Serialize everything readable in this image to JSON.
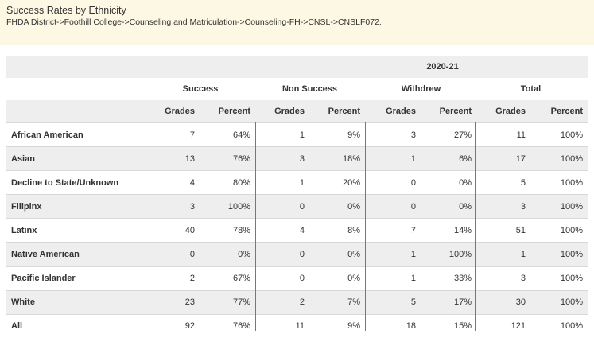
{
  "report": {
    "title": "Success Rates by Ethnicity",
    "breadcrumb": "FHDA District->Foothill College->Counseling and Matriculation->Counseling-FH->CNSL->CNSLF072."
  },
  "table": {
    "year": "2020-21",
    "groups": [
      "Success",
      "Non Success",
      "Withdrew",
      "Total"
    ],
    "subheaders": [
      "Grades",
      "Percent",
      "Grades",
      "Percent",
      "Grades",
      "Percent",
      "Grades",
      "Percent"
    ],
    "rows": [
      {
        "label": "African American",
        "cells": [
          "7",
          "64%",
          "1",
          "9%",
          "3",
          "27%",
          "11",
          "100%"
        ]
      },
      {
        "label": "Asian",
        "cells": [
          "13",
          "76%",
          "3",
          "18%",
          "1",
          "6%",
          "17",
          "100%"
        ]
      },
      {
        "label": "Decline to State/Unknown",
        "cells": [
          "4",
          "80%",
          "1",
          "20%",
          "0",
          "0%",
          "5",
          "100%"
        ]
      },
      {
        "label": "Filipinx",
        "cells": [
          "3",
          "100%",
          "0",
          "0%",
          "0",
          "0%",
          "3",
          "100%"
        ]
      },
      {
        "label": "Latinx",
        "cells": [
          "40",
          "78%",
          "4",
          "8%",
          "7",
          "14%",
          "51",
          "100%"
        ]
      },
      {
        "label": "Native American",
        "cells": [
          "0",
          "0%",
          "0",
          "0%",
          "1",
          "100%",
          "1",
          "100%"
        ]
      },
      {
        "label": "Pacific Islander",
        "cells": [
          "2",
          "67%",
          "0",
          "0%",
          "1",
          "33%",
          "3",
          "100%"
        ]
      },
      {
        "label": "White",
        "cells": [
          "23",
          "77%",
          "2",
          "7%",
          "5",
          "17%",
          "30",
          "100%"
        ]
      },
      {
        "label": "All",
        "cells": [
          "92",
          "76%",
          "11",
          "9%",
          "18",
          "15%",
          "121",
          "100%"
        ]
      }
    ]
  }
}
